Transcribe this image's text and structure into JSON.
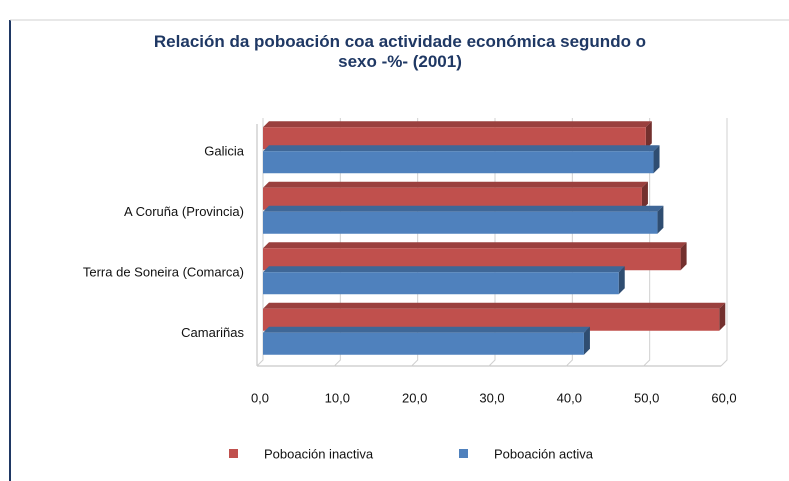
{
  "chart_data": {
    "type": "bar",
    "orientation": "horizontal",
    "title": "Relación da poboación coa actividade económica segundo o sexo -%- (2001)",
    "categories": [
      "Galicia",
      "A Coruña (Provincia)",
      "Terra de Soneira (Comarca)",
      "Camariñas"
    ],
    "series": [
      {
        "name": "Poboación inactiva",
        "color": "#c0504d",
        "values": [
          49.5,
          49.0,
          54.0,
          59.0
        ]
      },
      {
        "name": "Poboación activa",
        "color": "#4f81bd",
        "values": [
          50.5,
          51.0,
          46.0,
          41.5
        ]
      }
    ],
    "xlim": [
      0,
      60
    ],
    "xticks": [
      {
        "value": 0,
        "label": "0,0"
      },
      {
        "value": 10,
        "label": "10,0"
      },
      {
        "value": 20,
        "label": "20,0"
      },
      {
        "value": 30,
        "label": "30,0"
      },
      {
        "value": 40,
        "label": "40,0"
      },
      {
        "value": 50,
        "label": "50,0"
      },
      {
        "value": 60,
        "label": "60,0"
      }
    ],
    "grid": true,
    "legend": "bottom"
  }
}
